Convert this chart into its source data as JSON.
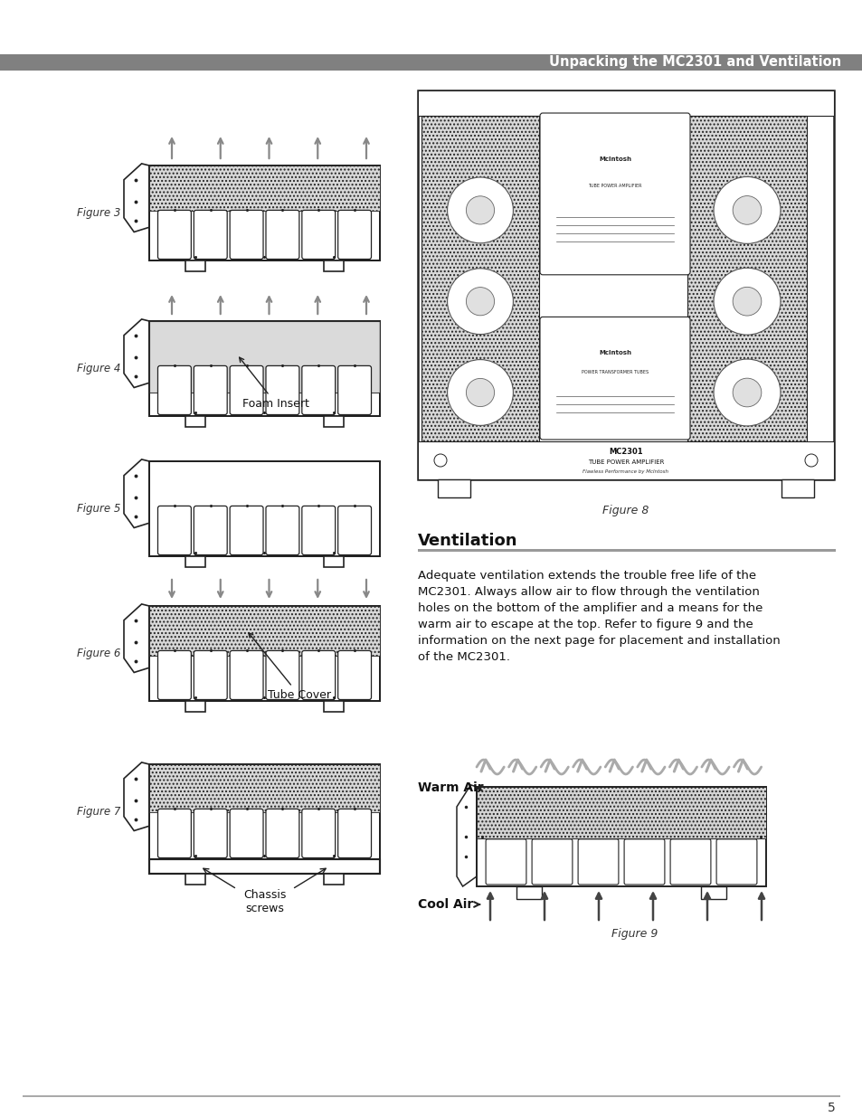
{
  "page_title": "Unpacking the MC2301 and Ventilation",
  "page_number": "5",
  "background_color": "#ffffff",
  "title_bar_color": "#808080",
  "section_bar_color": "#999999",
  "ventilation_title": "Ventilation",
  "ventilation_text": "Adequate ventilation extends the trouble free life of the MC2301. Always allow air to flow through the ventilation holes on the bottom of the amplifier and a means for the warm air to escape at the top. Refer to figure 9 and the information on the next page for placement and installation of the MC2301.",
  "warm_air_label": "Warm Air",
  "cool_air_label": "Cool Air",
  "foam_insert_label": "Foam Insert",
  "tube_cover_label": "Tube Cover",
  "chassis_screws_label": "Chassis\nscrews",
  "arrow_gray": "#888888",
  "line_color": "#222222"
}
